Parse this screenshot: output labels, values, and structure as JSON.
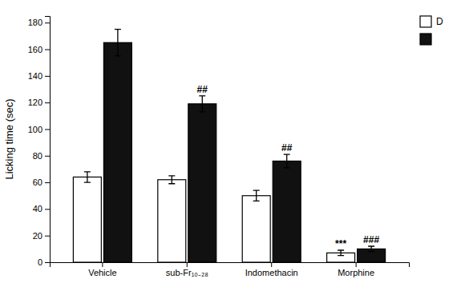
{
  "chart_data": {
    "type": "bar",
    "categories": [
      "Vehicle",
      "sub-Fr₁₀₋₂₈",
      "Indomethacin",
      "Morphine"
    ],
    "series": [
      {
        "name": "D",
        "color": "#ffffff",
        "values": [
          64,
          62,
          50,
          7
        ],
        "errors": [
          4,
          3,
          4,
          2
        ],
        "annotations": [
          null,
          null,
          null,
          "***"
        ]
      },
      {
        "color": "#111111",
        "values": [
          165,
          119,
          76,
          10
        ],
        "errors": [
          10,
          6,
          5,
          2
        ],
        "annotations": [
          null,
          "##",
          "##",
          "###"
        ]
      }
    ],
    "y_label": "Licking time (sec)",
    "ylim": [
      0,
      185
    ],
    "yticks": [
      0,
      20,
      40,
      60,
      80,
      100,
      120,
      140,
      160,
      180
    ],
    "grid": false,
    "legend": "right"
  }
}
